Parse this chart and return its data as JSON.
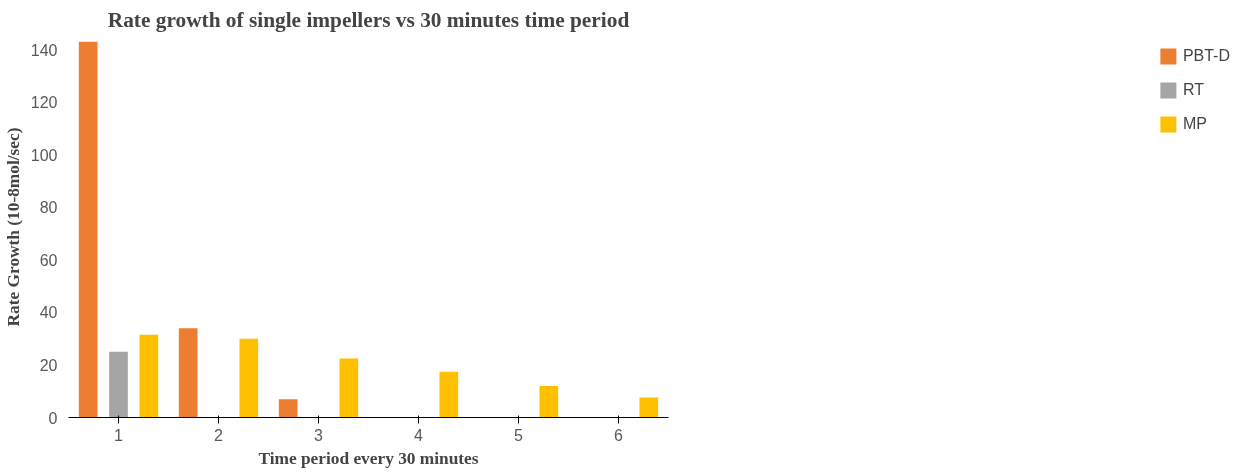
{
  "chart_data": {
    "type": "bar",
    "title": "Rate growth of single impellers vs 30 minutes time period",
    "xlabel": "Time period every 30 minutes",
    "ylabel": "Rate Growth (10-8mol/sec)",
    "categories": [
      "1",
      "2",
      "3",
      "4",
      "5",
      "6"
    ],
    "series": [
      {
        "name": "PBT-D",
        "color": "#ed7d31",
        "values": [
          143,
          34,
          6.9,
          null,
          null,
          null
        ]
      },
      {
        "name": "RT",
        "color": "#a5a5a5",
        "values": [
          25,
          null,
          null,
          null,
          null,
          null
        ]
      },
      {
        "name": "MP",
        "color": "#ffc000",
        "values": [
          31.5,
          30,
          22.5,
          17.4,
          12,
          7.6
        ]
      }
    ],
    "ylim": [
      0,
      145
    ],
    "yticks": [
      0,
      20,
      40,
      60,
      80,
      100,
      120,
      140
    ],
    "grid": false,
    "legend": "right"
  }
}
